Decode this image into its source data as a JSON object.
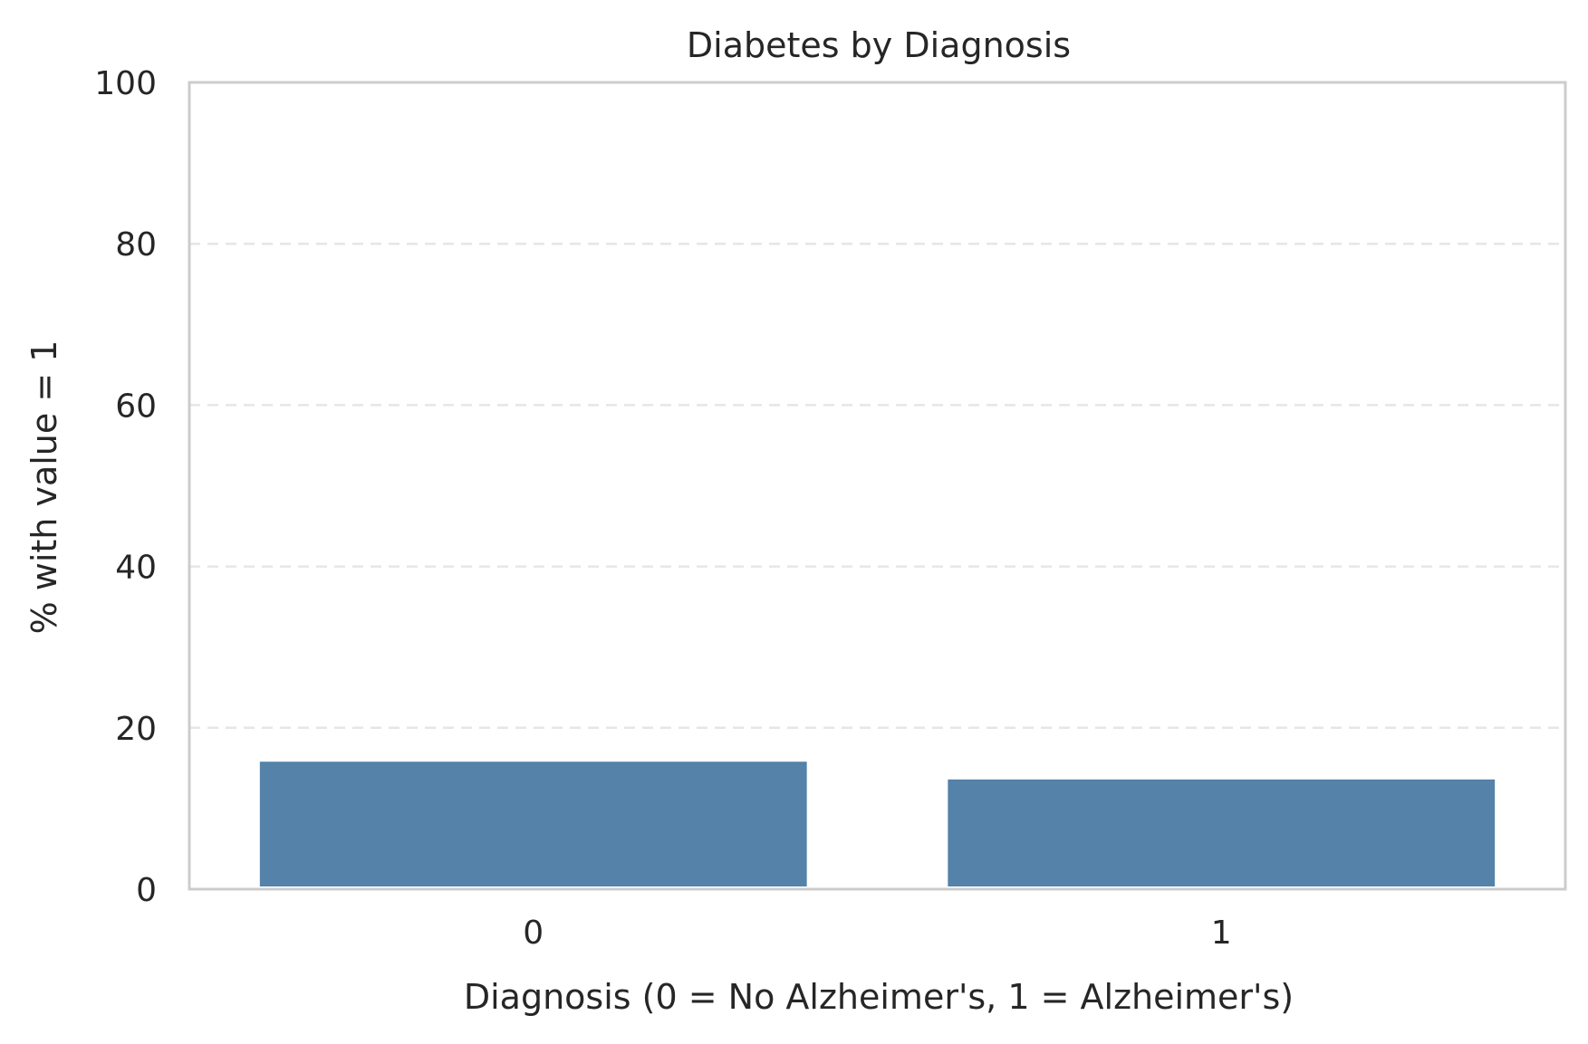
{
  "chart_data": {
    "type": "bar",
    "title": "Diabetes by Diagnosis",
    "xlabel": "Diagnosis (0 = No Alzheimer's, 1 = Alzheimer's)",
    "ylabel": "% with value = 1",
    "categories": [
      "0",
      "1"
    ],
    "values": [
      15.8,
      13.6
    ],
    "ylim": [
      0,
      100
    ],
    "yticks": [
      "0",
      "20",
      "40",
      "60",
      "80",
      "100"
    ],
    "grid": "y-dashed",
    "legend": "none",
    "bar_color": "#5482a9"
  }
}
